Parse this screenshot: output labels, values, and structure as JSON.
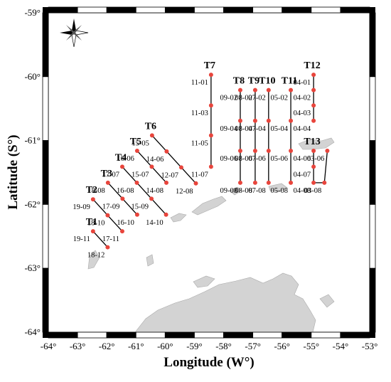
{
  "map": {
    "xlabel": "Longitude (W°)",
    "ylabel": "Latitude (S°)",
    "xlim": [
      -64,
      -53
    ],
    "ylim": [
      -64,
      -59
    ],
    "xticks": [
      {
        "value": -64,
        "label": "-64°"
      },
      {
        "value": -63,
        "label": "-63°"
      },
      {
        "value": -62,
        "label": "-62°"
      },
      {
        "value": -61,
        "label": "-61°"
      },
      {
        "value": -60,
        "label": "-60°"
      },
      {
        "value": -59,
        "label": "-59°"
      },
      {
        "value": -58,
        "label": "-58°"
      },
      {
        "value": -57,
        "label": "-57°"
      },
      {
        "value": -56,
        "label": "-56°"
      },
      {
        "value": -55,
        "label": "-55°"
      },
      {
        "value": -54,
        "label": "-54°"
      },
      {
        "value": -53,
        "label": "-53°"
      }
    ],
    "yticks": [
      {
        "value": -59,
        "label": "-59°"
      },
      {
        "value": -60,
        "label": "-60°"
      },
      {
        "value": -61,
        "label": "-61°"
      },
      {
        "value": -62,
        "label": "-62°"
      },
      {
        "value": -63,
        "label": "-63°"
      },
      {
        "value": -64,
        "label": "-64°"
      }
    ],
    "point_color": "#e8453c",
    "transects": [
      {
        "name": "T1",
        "stations": [
          {
            "label": "19-11",
            "lon": -62.47,
            "lat": -62.42
          },
          {
            "label": "18-12",
            "lon": -61.97,
            "lat": -62.67
          }
        ]
      },
      {
        "name": "T2",
        "stations": [
          {
            "label": "19-09",
            "lon": -62.47,
            "lat": -61.92
          },
          {
            "label": "18-10",
            "lon": -61.97,
            "lat": -62.17
          },
          {
            "label": "17-11",
            "lon": -61.47,
            "lat": -62.42
          }
        ]
      },
      {
        "name": "T3",
        "stations": [
          {
            "label": "18-08",
            "lon": -61.96,
            "lat": -61.66
          },
          {
            "label": "17-09",
            "lon": -61.46,
            "lat": -61.91
          },
          {
            "label": "16-10",
            "lon": -60.96,
            "lat": -62.16
          }
        ]
      },
      {
        "name": "T4",
        "stations": [
          {
            "label": "17-07",
            "lon": -61.47,
            "lat": -61.41
          },
          {
            "label": "16-08",
            "lon": -60.97,
            "lat": -61.66
          },
          {
            "label": "15-09",
            "lon": -60.47,
            "lat": -61.91
          },
          {
            "label": "14-10",
            "lon": -59.97,
            "lat": -62.16
          }
        ]
      },
      {
        "name": "T5",
        "stations": [
          {
            "label": "16-06",
            "lon": -60.96,
            "lat": -61.16
          },
          {
            "label": "15-07",
            "lon": -60.46,
            "lat": -61.41
          },
          {
            "label": "14-08",
            "lon": -59.96,
            "lat": -61.66
          }
        ]
      },
      {
        "name": "T6",
        "stations": [
          {
            "label": "15-05",
            "lon": -60.45,
            "lat": -60.92
          },
          {
            "label": "14-06",
            "lon": -59.95,
            "lat": -61.17
          },
          {
            "label": "12-07",
            "lon": -59.45,
            "lat": -61.42
          },
          {
            "label": "12-08",
            "lon": -58.95,
            "lat": -61.67
          }
        ]
      },
      {
        "name": "T7",
        "stations": [
          {
            "label": "11-01",
            "lon": -58.43,
            "lat": -59.97
          },
          {
            "label": "11-03",
            "lon": -58.43,
            "lat": -60.45
          },
          {
            "label": "11-05",
            "lon": -58.43,
            "lat": -60.92
          },
          {
            "label": "11-07",
            "lon": -58.43,
            "lat": -61.41
          }
        ]
      },
      {
        "name": "T8",
        "stations": [
          {
            "label": "09-02",
            "lon": -57.43,
            "lat": -60.21
          },
          {
            "label": "09-04",
            "lon": -57.43,
            "lat": -60.69
          },
          {
            "label": "09-06",
            "lon": -57.43,
            "lat": -61.16
          },
          {
            "label": "09-08",
            "lon": -57.43,
            "lat": -61.66
          }
        ]
      },
      {
        "name": "T9",
        "stations": [
          {
            "label": "08-02",
            "lon": -56.92,
            "lat": -60.21
          },
          {
            "label": "08-04",
            "lon": -56.92,
            "lat": -60.69
          },
          {
            "label": "08-06",
            "lon": -56.92,
            "lat": -61.16
          },
          {
            "label": "08-08",
            "lon": -56.92,
            "lat": -61.66
          }
        ]
      },
      {
        "name": "T10",
        "stations": [
          {
            "label": "07-02",
            "lon": -56.46,
            "lat": -60.21
          },
          {
            "label": "07-04",
            "lon": -56.46,
            "lat": -60.69
          },
          {
            "label": "07-06",
            "lon": -56.46,
            "lat": -61.16
          },
          {
            "label": "07-08",
            "lon": -56.46,
            "lat": -61.66
          }
        ]
      },
      {
        "name": "T11",
        "stations": [
          {
            "label": "05-02",
            "lon": -55.7,
            "lat": -60.21
          },
          {
            "label": "05-04",
            "lon": -55.7,
            "lat": -60.69
          },
          {
            "label": "05-06",
            "lon": -55.7,
            "lat": -61.16
          },
          {
            "label": "05-08",
            "lon": -55.7,
            "lat": -61.66
          }
        ]
      },
      {
        "name": "T12",
        "stations": [
          {
            "label": "04-01",
            "lon": -54.92,
            "lat": -59.97
          },
          {
            "label": "04-02",
            "lon": -54.92,
            "lat": -60.21
          },
          {
            "label": "04-03",
            "lon": -54.92,
            "lat": -60.45
          },
          {
            "label": "04-04",
            "lon": -54.92,
            "lat": -60.69
          }
        ]
      },
      {
        "name": "T13",
        "stations": [
          {
            "label": "04-06",
            "lon": -54.92,
            "lat": -61.16
          },
          {
            "label": "04-07",
            "lon": -54.92,
            "lat": -61.41
          },
          {
            "label": "04-08",
            "lon": -54.92,
            "lat": -61.66
          },
          {
            "label": "03-08",
            "lon": -54.55,
            "lat": -61.66
          },
          {
            "label": "03-06",
            "lon": -54.45,
            "lat": -61.16
          }
        ]
      }
    ]
  }
}
